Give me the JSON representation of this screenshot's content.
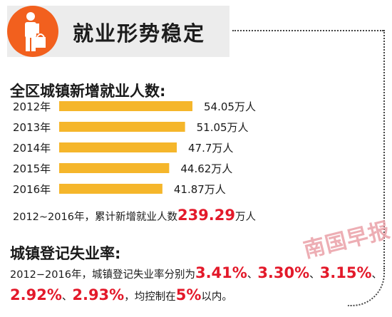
{
  "header": {
    "title": "就业形势稳定",
    "icon": "worker-with-bag-icon"
  },
  "employment": {
    "title": "全区城镇新增就业人数:",
    "cumulative": {
      "prefix": "2012~2016年，累计新增就业人数",
      "value": "239.29",
      "unit": "万人"
    }
  },
  "chart_data": {
    "type": "bar",
    "orientation": "horizontal",
    "categories": [
      "2012年",
      "2013年",
      "2014年",
      "2015年",
      "2016年"
    ],
    "values": [
      54.05,
      51.05,
      47.7,
      44.62,
      41.87
    ],
    "value_labels": [
      "54.05万人",
      "51.05万人",
      "47.7万人",
      "44.62万人",
      "41.87万人"
    ],
    "grid": false
  },
  "unemployment": {
    "title": "城镇登记失业率:",
    "line1_prefix": "2012−2016年，城镇登记失业率分别为",
    "rates": [
      "3.41%",
      "3.30%",
      "3.15%",
      "2.92%",
      "2.93%"
    ],
    "separator": "、",
    "line2_suffix_prefix": "，均控制在",
    "limit": "5%",
    "line2_suffix": "以内。"
  },
  "watermark": "南国早报",
  "colors": {
    "accent": "#f2601e",
    "bar": "#f5b62b",
    "highlight": "#e3192a",
    "header_bg": "#ececec"
  }
}
